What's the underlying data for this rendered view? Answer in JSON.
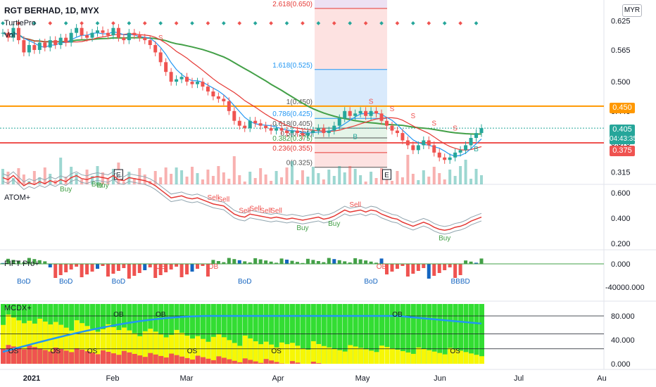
{
  "header": {
    "symbol_title": "RGT BERHAD, 1D, MYX",
    "indicator_1": "TurtlePro",
    "indicator_2": "Vol",
    "currency": "MYR"
  },
  "colors": {
    "up": "#26a69a",
    "down": "#ef5350",
    "ma_green": "#43a047",
    "ma_red": "#e53935",
    "ma_blue": "#2196f3",
    "orange": "#ff9800",
    "lime": "#33dd33",
    "yellow": "#f7f705"
  },
  "chart_data": [
    {
      "type": "candlestick",
      "panel": "price",
      "title": "RGT BERHAD, 1D, MYX",
      "y_ticks": [
        0.625,
        0.565,
        0.5,
        0.44,
        0.375,
        0.315
      ],
      "ylim": [
        0.29,
        0.66
      ],
      "x_tick_labels": [
        "2021",
        "Feb",
        "Mar",
        "Apr",
        "May",
        "Jun",
        "Jul",
        "Au"
      ],
      "price_tags": [
        {
          "label": "0.450",
          "color": "#ff9800"
        },
        {
          "label": "0.405",
          "sub": "04:43:35",
          "color": "#26a69a"
        },
        {
          "label": "0.375",
          "color": "#ef5350"
        }
      ],
      "fib_levels": [
        {
          "label": "2.618(0.650)",
          "value": 0.65
        },
        {
          "label": "1.618(0.525)",
          "value": 0.525
        },
        {
          "label": "1(0.450)",
          "value": 0.45
        },
        {
          "label": "0.786(0.425)",
          "value": 0.425
        },
        {
          "label": "0.618(0.405)",
          "value": 0.405
        },
        {
          "label": "0.5(0.385)",
          "value": 0.385
        },
        {
          "label": "0.382(0.375)",
          "value": 0.375
        },
        {
          "label": "0.236(0.355)",
          "value": 0.355
        },
        {
          "label": "0(0.325)",
          "value": 0.325
        }
      ],
      "horizontal_lines": [
        0.45,
        0.375
      ],
      "close_series": [
        0.6,
        0.59,
        0.61,
        0.585,
        0.56,
        0.575,
        0.565,
        0.58,
        0.57,
        0.585,
        0.575,
        0.59,
        0.58,
        0.6,
        0.61,
        0.595,
        0.59,
        0.6,
        0.605,
        0.6,
        0.595,
        0.61,
        0.59,
        0.585,
        0.6,
        0.595,
        0.59,
        0.585,
        0.575,
        0.56,
        0.54,
        0.52,
        0.5,
        0.505,
        0.51,
        0.5,
        0.495,
        0.5,
        0.49,
        0.48,
        0.47,
        0.465,
        0.46,
        0.44,
        0.42,
        0.41,
        0.405,
        0.42,
        0.415,
        0.41,
        0.405,
        0.4,
        0.405,
        0.4,
        0.395,
        0.4,
        0.395,
        0.39,
        0.395,
        0.4,
        0.405,
        0.395,
        0.4,
        0.41,
        0.425,
        0.44,
        0.43,
        0.435,
        0.44,
        0.43,
        0.44,
        0.435,
        0.42,
        0.41,
        0.4,
        0.395,
        0.38,
        0.37,
        0.36,
        0.37,
        0.38,
        0.37,
        0.355,
        0.345,
        0.34,
        0.345,
        0.355,
        0.36,
        0.37,
        0.385,
        0.395,
        0.405
      ],
      "markers": {
        "S_count": 6,
        "B_count": 2,
        "E_count": 2
      }
    },
    {
      "type": "line",
      "panel": "ATOM+",
      "title": "ATOM+",
      "y_ticks": [
        0.6,
        0.4,
        0.2
      ],
      "ylim": [
        0.15,
        0.65
      ],
      "signals": [
        "Buy",
        "Buy",
        "Buy",
        "Sell",
        "Sell",
        "Sell",
        "Sell",
        "Sell",
        "Sell",
        "Buy",
        "Buy",
        "Sell",
        "Buy"
      ]
    },
    {
      "type": "bar",
      "panel": "FIFT Pro+",
      "title": "FIFT Pro+",
      "y_ticks": [
        "0.000",
        "-40000.000"
      ],
      "labels": [
        "BoD",
        "BoD",
        "BoD",
        "BoD",
        "BoD",
        "BBBD",
        "OB",
        "OB",
        "OB"
      ]
    },
    {
      "type": "heatmap",
      "panel": "MCDX+",
      "title": "MCDX+",
      "y_ticks": [
        "80.000",
        "40.000",
        "0.000"
      ],
      "ylim": [
        0,
        100
      ],
      "labels": [
        "OB",
        "OB",
        "OB",
        "OS",
        "OS",
        "OS",
        "OS",
        "OS",
        "OS"
      ]
    }
  ]
}
